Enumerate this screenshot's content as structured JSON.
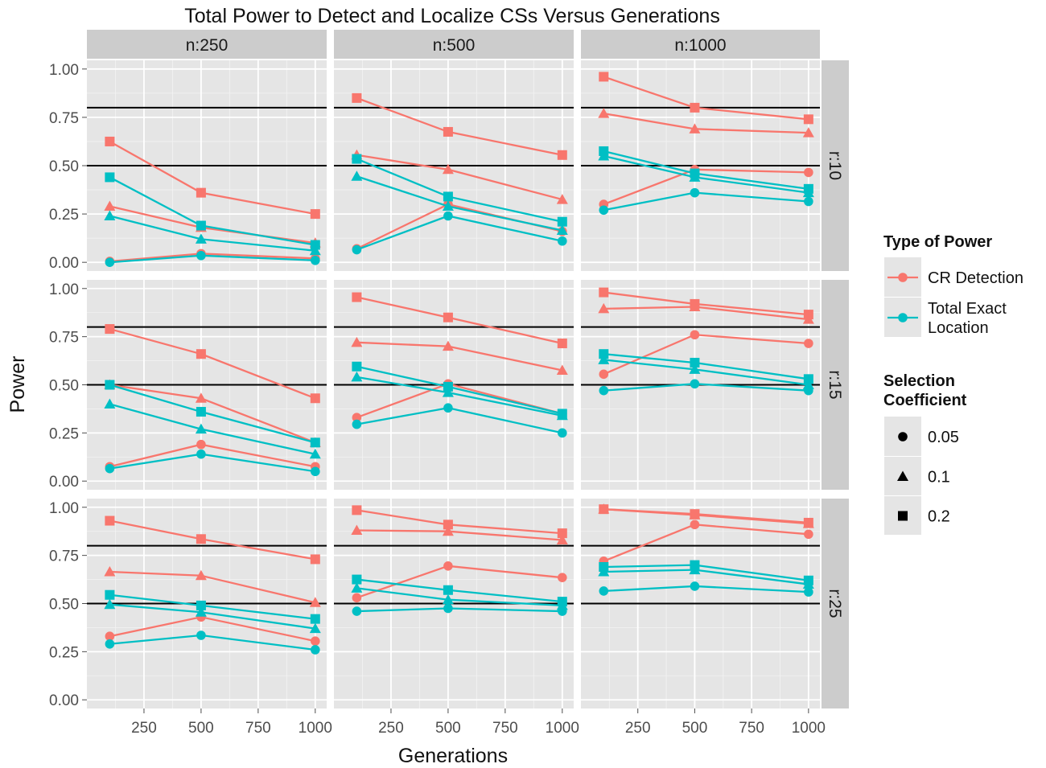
{
  "chart_data": {
    "type": "line",
    "title": "Total Power to Detect and Localize CSs Versus Generations",
    "xlabel": "Generations",
    "ylabel": "Power",
    "xlim": [
      0,
      1050
    ],
    "ylim": [
      0,
      1
    ],
    "x_ticks": [
      250,
      500,
      750,
      1000
    ],
    "x_tick_labels": [
      "250",
      "500",
      "750",
      "1000"
    ],
    "y_ticks": [
      0,
      0.25,
      0.5,
      0.75,
      1
    ],
    "y_tick_labels": [
      "0.00",
      "0.25",
      "0.50",
      "0.75",
      "1.00"
    ],
    "reference_lines": [
      0.5,
      0.8
    ],
    "grid": true,
    "facet_cols": [
      "n:250",
      "n:500",
      "n:1000"
    ],
    "facet_rows": [
      "r:10",
      "r:15",
      "r:25"
    ],
    "x": [
      100,
      500,
      1000
    ],
    "legend": {
      "color_title": "Type of Power",
      "color_entries": [
        {
          "label": "CR Detection",
          "color": "#F8766D"
        },
        {
          "label": "Total Exact\nLocation",
          "color": "#00BFC4"
        }
      ],
      "shape_title": "Selection\nCoefficient",
      "shape_entries": [
        {
          "label": "0.05",
          "shape": "circle"
        },
        {
          "label": "0.1",
          "shape": "triangle"
        },
        {
          "label": "0.2",
          "shape": "square"
        }
      ]
    },
    "panels": [
      {
        "col": 0,
        "row": 0,
        "series": [
          {
            "power": "CR Detection",
            "s": "0.05",
            "values": [
              0.005,
              0.045,
              0.02
            ]
          },
          {
            "power": "CR Detection",
            "s": "0.1",
            "values": [
              0.29,
              0.18,
              0.1
            ]
          },
          {
            "power": "CR Detection",
            "s": "0.2",
            "values": [
              0.625,
              0.36,
              0.25
            ]
          },
          {
            "power": "Total Exact Location",
            "s": "0.05",
            "values": [
              0.0,
              0.035,
              0.01
            ]
          },
          {
            "power": "Total Exact Location",
            "s": "0.1",
            "values": [
              0.24,
              0.12,
              0.06
            ]
          },
          {
            "power": "Total Exact Location",
            "s": "0.2",
            "values": [
              0.44,
              0.19,
              0.09
            ]
          }
        ]
      },
      {
        "col": 1,
        "row": 0,
        "series": [
          {
            "power": "CR Detection",
            "s": "0.05",
            "values": [
              0.07,
              0.3,
              0.16
            ]
          },
          {
            "power": "CR Detection",
            "s": "0.1",
            "values": [
              0.555,
              0.48,
              0.325
            ]
          },
          {
            "power": "CR Detection",
            "s": "0.2",
            "values": [
              0.85,
              0.675,
              0.555
            ]
          },
          {
            "power": "Total Exact Location",
            "s": "0.05",
            "values": [
              0.065,
              0.24,
              0.11
            ]
          },
          {
            "power": "Total Exact Location",
            "s": "0.1",
            "values": [
              0.445,
              0.29,
              0.165
            ]
          },
          {
            "power": "Total Exact Location",
            "s": "0.2",
            "values": [
              0.535,
              0.34,
              0.21
            ]
          }
        ]
      },
      {
        "col": 2,
        "row": 0,
        "series": [
          {
            "power": "CR Detection",
            "s": "0.05",
            "values": [
              0.3,
              0.48,
              0.465
            ]
          },
          {
            "power": "CR Detection",
            "s": "0.1",
            "values": [
              0.77,
              0.69,
              0.67
            ]
          },
          {
            "power": "CR Detection",
            "s": "0.2",
            "values": [
              0.96,
              0.8,
              0.74
            ]
          },
          {
            "power": "Total Exact Location",
            "s": "0.05",
            "values": [
              0.27,
              0.36,
              0.315
            ]
          },
          {
            "power": "Total Exact Location",
            "s": "0.1",
            "values": [
              0.55,
              0.44,
              0.36
            ]
          },
          {
            "power": "Total Exact Location",
            "s": "0.2",
            "values": [
              0.575,
              0.46,
              0.38
            ]
          }
        ]
      },
      {
        "col": 0,
        "row": 1,
        "series": [
          {
            "power": "CR Detection",
            "s": "0.05",
            "values": [
              0.075,
              0.19,
              0.075
            ]
          },
          {
            "power": "CR Detection",
            "s": "0.1",
            "values": [
              0.5,
              0.43,
              0.2
            ]
          },
          {
            "power": "CR Detection",
            "s": "0.2",
            "values": [
              0.79,
              0.66,
              0.43
            ]
          },
          {
            "power": "Total Exact Location",
            "s": "0.05",
            "values": [
              0.065,
              0.14,
              0.05
            ]
          },
          {
            "power": "Total Exact Location",
            "s": "0.1",
            "values": [
              0.4,
              0.27,
              0.14
            ]
          },
          {
            "power": "Total Exact Location",
            "s": "0.2",
            "values": [
              0.5,
              0.36,
              0.2
            ]
          }
        ]
      },
      {
        "col": 1,
        "row": 1,
        "series": [
          {
            "power": "CR Detection",
            "s": "0.05",
            "values": [
              0.33,
              0.505,
              0.35
            ]
          },
          {
            "power": "CR Detection",
            "s": "0.1",
            "values": [
              0.72,
              0.7,
              0.575
            ]
          },
          {
            "power": "CR Detection",
            "s": "0.2",
            "values": [
              0.955,
              0.85,
              0.715
            ]
          },
          {
            "power": "Total Exact Location",
            "s": "0.05",
            "values": [
              0.295,
              0.38,
              0.25
            ]
          },
          {
            "power": "Total Exact Location",
            "s": "0.1",
            "values": [
              0.54,
              0.46,
              0.34
            ]
          },
          {
            "power": "Total Exact Location",
            "s": "0.2",
            "values": [
              0.595,
              0.49,
              0.35
            ]
          }
        ]
      },
      {
        "col": 2,
        "row": 1,
        "series": [
          {
            "power": "CR Detection",
            "s": "0.05",
            "values": [
              0.555,
              0.76,
              0.715
            ]
          },
          {
            "power": "CR Detection",
            "s": "0.1",
            "values": [
              0.895,
              0.905,
              0.84
            ]
          },
          {
            "power": "CR Detection",
            "s": "0.2",
            "values": [
              0.98,
              0.92,
              0.865
            ]
          },
          {
            "power": "Total Exact Location",
            "s": "0.05",
            "values": [
              0.47,
              0.505,
              0.47
            ]
          },
          {
            "power": "Total Exact Location",
            "s": "0.1",
            "values": [
              0.63,
              0.58,
              0.5
            ]
          },
          {
            "power": "Total Exact Location",
            "s": "0.2",
            "values": [
              0.66,
              0.615,
              0.53
            ]
          }
        ]
      },
      {
        "col": 0,
        "row": 2,
        "series": [
          {
            "power": "CR Detection",
            "s": "0.05",
            "values": [
              0.33,
              0.43,
              0.305
            ]
          },
          {
            "power": "CR Detection",
            "s": "0.1",
            "values": [
              0.665,
              0.645,
              0.505
            ]
          },
          {
            "power": "CR Detection",
            "s": "0.2",
            "values": [
              0.93,
              0.835,
              0.73
            ]
          },
          {
            "power": "Total Exact Location",
            "s": "0.05",
            "values": [
              0.29,
              0.335,
              0.26
            ]
          },
          {
            "power": "Total Exact Location",
            "s": "0.1",
            "values": [
              0.495,
              0.455,
              0.37
            ]
          },
          {
            "power": "Total Exact Location",
            "s": "0.2",
            "values": [
              0.545,
              0.49,
              0.42
            ]
          }
        ]
      },
      {
        "col": 1,
        "row": 2,
        "series": [
          {
            "power": "CR Detection",
            "s": "0.05",
            "values": [
              0.53,
              0.695,
              0.635
            ]
          },
          {
            "power": "CR Detection",
            "s": "0.1",
            "values": [
              0.88,
              0.875,
              0.83
            ]
          },
          {
            "power": "CR Detection",
            "s": "0.2",
            "values": [
              0.985,
              0.91,
              0.865
            ]
          },
          {
            "power": "Total Exact Location",
            "s": "0.05",
            "values": [
              0.46,
              0.475,
              0.46
            ]
          },
          {
            "power": "Total Exact Location",
            "s": "0.1",
            "values": [
              0.58,
              0.52,
              0.49
            ]
          },
          {
            "power": "Total Exact Location",
            "s": "0.2",
            "values": [
              0.625,
              0.57,
              0.51
            ]
          }
        ]
      },
      {
        "col": 2,
        "row": 2,
        "series": [
          {
            "power": "CR Detection",
            "s": "0.05",
            "values": [
              0.72,
              0.91,
              0.86
            ]
          },
          {
            "power": "CR Detection",
            "s": "0.1",
            "values": [
              0.99,
              0.96,
              0.915
            ]
          },
          {
            "power": "CR Detection",
            "s": "0.2",
            "values": [
              0.99,
              0.965,
              0.92
            ]
          },
          {
            "power": "Total Exact Location",
            "s": "0.05",
            "values": [
              0.565,
              0.59,
              0.56
            ]
          },
          {
            "power": "Total Exact Location",
            "s": "0.1",
            "values": [
              0.665,
              0.675,
              0.6
            ]
          },
          {
            "power": "Total Exact Location",
            "s": "0.2",
            "values": [
              0.69,
              0.7,
              0.62
            ]
          }
        ]
      }
    ]
  }
}
